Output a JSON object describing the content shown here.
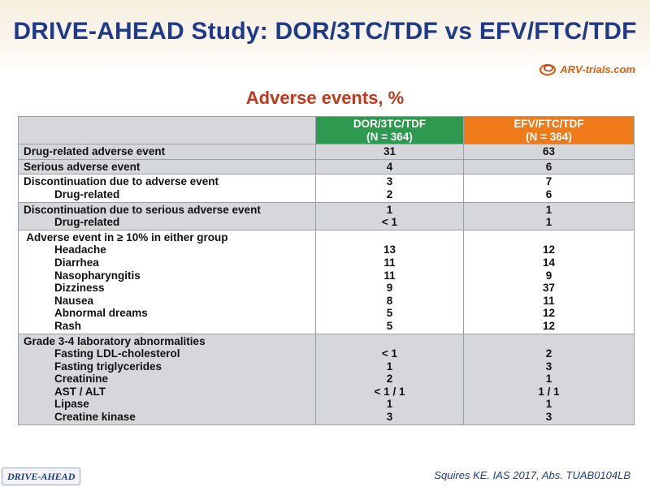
{
  "title": "DRIVE-AHEAD Study: DOR/3TC/TDF vs EFV/FTC/TDF",
  "logo": {
    "text": "ARV-trials.com",
    "icon": "swirl-logo-icon"
  },
  "subtitle": "Adverse events, %",
  "colors": {
    "title": "#1f3a8a",
    "subtitle": "#c0391b",
    "dor_header": "#2e9a4f",
    "efv_header": "#ef7a1a",
    "gray_row": "#d6d7db"
  },
  "table": {
    "header": {
      "dor": [
        "DOR/3TC/TDF",
        "(N = 364)"
      ],
      "efv": [
        "EFV/FTC/TDF",
        "(N = 364)"
      ]
    },
    "rows": [
      {
        "labels": [
          "Drug-related adverse event"
        ],
        "dor": [
          "31"
        ],
        "efv": [
          "63"
        ]
      },
      {
        "labels": [
          "Serious adverse event"
        ],
        "dor": [
          "4"
        ],
        "efv": [
          "6"
        ]
      },
      {
        "labels": [
          "Discontinuation due to adverse event",
          "Drug-related"
        ],
        "dor": [
          "3",
          "2"
        ],
        "efv": [
          "7",
          "6"
        ]
      },
      {
        "labels": [
          "Discontinuation due to serious adverse event",
          "Drug-related"
        ],
        "dor": [
          "1",
          "< 1"
        ],
        "efv": [
          "1",
          "1"
        ]
      },
      {
        "labels": [
          " Adverse event in ≥ 10% in either group",
          "Headache",
          "Diarrhea",
          "Nasopharyngitis",
          "Dizziness",
          "Nausea",
          "Abnormal dreams",
          "Rash"
        ],
        "dor": [
          "",
          "13",
          "11",
          "11",
          "9",
          "8",
          "5",
          "5"
        ],
        "efv": [
          "",
          "12",
          "14",
          "9",
          "37",
          "11",
          "12",
          "12"
        ]
      },
      {
        "labels": [
          "Grade 3-4 laboratory abnormalities",
          "Fasting LDL-cholesterol",
          "Fasting triglycerides",
          "Creatinine",
          "AST / ALT",
          "Lipase",
          "Creatine kinase"
        ],
        "dor": [
          "",
          "< 1",
          "1",
          "2",
          "< 1 / 1",
          "1",
          "3"
        ],
        "efv": [
          "",
          "2",
          "3",
          "1",
          "1 / 1",
          "1",
          "3"
        ]
      }
    ]
  },
  "footer": {
    "badge": "DRIVE-AHEAD",
    "citation": "Squires KE. IAS  2017, Abs. TUAB0104LB"
  }
}
